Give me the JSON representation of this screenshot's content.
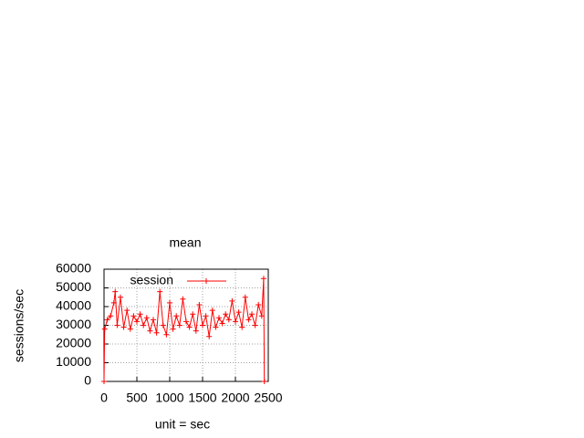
{
  "chart_data": {
    "type": "line",
    "title": "mean",
    "xlabel": "unit = sec",
    "ylabel": "sessions/sec",
    "x": [
      0,
      10,
      50,
      100,
      150,
      170,
      200,
      250,
      300,
      350,
      400,
      450,
      500,
      550,
      600,
      650,
      700,
      750,
      800,
      850,
      900,
      950,
      1000,
      1050,
      1100,
      1150,
      1200,
      1250,
      1300,
      1350,
      1400,
      1450,
      1500,
      1550,
      1600,
      1650,
      1700,
      1750,
      1800,
      1850,
      1900,
      1950,
      2000,
      2050,
      2100,
      2150,
      2200,
      2250,
      2300,
      2350,
      2400,
      2430,
      2440
    ],
    "series": [
      {
        "name": "session",
        "color": "#ff0000",
        "values": [
          0,
          28000,
          33000,
          35000,
          42000,
          48000,
          30000,
          45000,
          29000,
          38000,
          28000,
          35000,
          32000,
          36000,
          30000,
          34000,
          27000,
          33000,
          26000,
          48000,
          30000,
          25000,
          42000,
          28000,
          35000,
          30000,
          44000,
          32000,
          29000,
          36000,
          27000,
          41000,
          30000,
          35000,
          24000,
          38000,
          29000,
          34000,
          31000,
          36000,
          33000,
          43000,
          32000,
          37000,
          29000,
          45000,
          33000,
          36000,
          30000,
          41000,
          35000,
          55000,
          0
        ]
      }
    ],
    "xlim": [
      0,
      2500
    ],
    "xticks": [
      0,
      500,
      1000,
      1500,
      2000,
      2500
    ],
    "ylim": [
      0,
      60000
    ],
    "yticks": [
      0,
      10000,
      20000,
      30000,
      40000,
      50000,
      60000
    ],
    "grid": true,
    "legend": "top-left"
  }
}
